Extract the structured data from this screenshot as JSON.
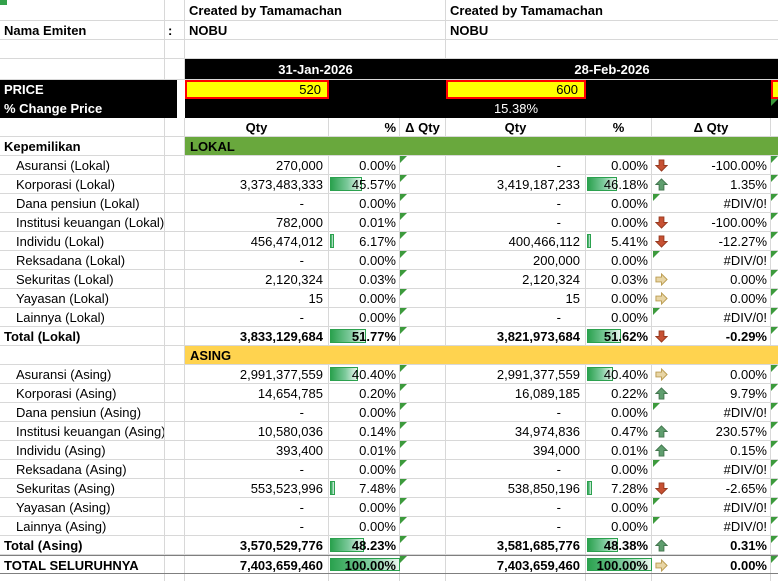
{
  "header": {
    "created_by": "Created by Tamamachan",
    "nama_emiten_label": "Nama Emiten",
    "colon": ":",
    "ticker": "NOBU",
    "price_label": "PRICE",
    "pct_change_label": "% Change Price",
    "kepemilikan_label": "Kepemilikan"
  },
  "periods": [
    {
      "date": "31-Jan-2026",
      "price": "520",
      "pct_change": ""
    },
    {
      "date": "28-Feb-2026",
      "price": "600",
      "pct_change": "15.38%"
    }
  ],
  "column_headers": {
    "qty": "Qty",
    "pct": "%",
    "delta": "Δ Qty"
  },
  "colors": {
    "lokal_band": "#69A83D",
    "asing_band": "#FFD34F",
    "price_fill": "#FFFF00",
    "price_border": "#FF0000",
    "bar_green": "#2BA24F",
    "icon_up_fill": "#5F9E6E",
    "icon_down_fill": "#C75133",
    "icon_right_fill": "#E8D5A5",
    "error_marker": "#3C9A3C"
  },
  "rows": [
    {
      "type": "band",
      "left_label": "Kepemilikan",
      "band_label": "LOKAL",
      "band_color_key": "lokal_band"
    },
    {
      "label": "Asuransi (Lokal)",
      "indent": true,
      "bold": false,
      "p1_qty": "270,000",
      "p1_pct": "0.00%",
      "p1_bar": 0,
      "p2_qty": "-",
      "p2_pct": "0.00%",
      "p2_bar": 0,
      "icon": "down",
      "delta": "-100.00%",
      "error": false
    },
    {
      "label": "Korporasi (Lokal)",
      "indent": true,
      "bold": false,
      "p1_qty": "3,373,483,333",
      "p1_pct": "45.57%",
      "p1_bar": 45.57,
      "p2_qty": "3,419,187,233",
      "p2_pct": "46.18%",
      "p2_bar": 46.18,
      "icon": "up",
      "delta": "1.35%",
      "error": false
    },
    {
      "label": "Dana pensiun (Lokal)",
      "indent": true,
      "bold": false,
      "p1_qty": "-",
      "p1_pct": "0.00%",
      "p1_bar": 0,
      "p2_qty": "-",
      "p2_pct": "0.00%",
      "p2_bar": 0,
      "icon": "",
      "delta": "#DIV/0!",
      "error": true
    },
    {
      "label": "Institusi keuangan (Lokal)",
      "indent": true,
      "bold": false,
      "p1_qty": "782,000",
      "p1_pct": "0.01%",
      "p1_bar": 0,
      "p2_qty": "-",
      "p2_pct": "0.00%",
      "p2_bar": 0,
      "icon": "down",
      "delta": "-100.00%",
      "error": false
    },
    {
      "label": "Individu (Lokal)",
      "indent": true,
      "bold": false,
      "p1_qty": "456,474,012",
      "p1_pct": "6.17%",
      "p1_bar": 6.17,
      "p2_qty": "400,466,112",
      "p2_pct": "5.41%",
      "p2_bar": 5.41,
      "icon": "down",
      "delta": "-12.27%",
      "error": false
    },
    {
      "label": "Reksadana (Lokal)",
      "indent": true,
      "bold": false,
      "p1_qty": "-",
      "p1_pct": "0.00%",
      "p1_bar": 0,
      "p2_qty": "200,000",
      "p2_pct": "0.00%",
      "p2_bar": 0,
      "icon": "",
      "delta": "#DIV/0!",
      "error": true
    },
    {
      "label": "Sekuritas (Lokal)",
      "indent": true,
      "bold": false,
      "p1_qty": "2,120,324",
      "p1_pct": "0.03%",
      "p1_bar": 0,
      "p2_qty": "2,120,324",
      "p2_pct": "0.03%",
      "p2_bar": 0,
      "icon": "right",
      "delta": "0.00%",
      "error": false
    },
    {
      "label": "Yayasan (Lokal)",
      "indent": true,
      "bold": false,
      "p1_qty": "15",
      "p1_pct": "0.00%",
      "p1_bar": 0,
      "p2_qty": "15",
      "p2_pct": "0.00%",
      "p2_bar": 0,
      "icon": "right",
      "delta": "0.00%",
      "error": false
    },
    {
      "label": "Lainnya (Lokal)",
      "indent": true,
      "bold": false,
      "p1_qty": "-",
      "p1_pct": "0.00%",
      "p1_bar": 0,
      "p2_qty": "-",
      "p2_pct": "0.00%",
      "p2_bar": 0,
      "icon": "",
      "delta": "#DIV/0!",
      "error": true
    },
    {
      "label": "Total (Lokal)",
      "indent": false,
      "bold": true,
      "p1_qty": "3,833,129,684",
      "p1_pct": "51.77%",
      "p1_bar": 51.77,
      "p2_qty": "3,821,973,684",
      "p2_pct": "51.62%",
      "p2_bar": 51.62,
      "icon": "down",
      "delta": "-0.29%",
      "error": false
    },
    {
      "type": "band",
      "left_label": "",
      "band_label": "ASING",
      "band_color_key": "asing_band"
    },
    {
      "label": "Asuransi (Asing)",
      "indent": true,
      "bold": false,
      "p1_qty": "2,991,377,559",
      "p1_pct": "40.40%",
      "p1_bar": 40.4,
      "p2_qty": "2,991,377,559",
      "p2_pct": "40.40%",
      "p2_bar": 40.4,
      "icon": "right",
      "delta": "0.00%",
      "error": false
    },
    {
      "label": "Korporasi (Asing)",
      "indent": true,
      "bold": false,
      "p1_qty": "14,654,785",
      "p1_pct": "0.20%",
      "p1_bar": 0.2,
      "p2_qty": "16,089,185",
      "p2_pct": "0.22%",
      "p2_bar": 0.22,
      "icon": "up",
      "delta": "9.79%",
      "error": false
    },
    {
      "label": "Dana pensiun (Asing)",
      "indent": true,
      "bold": false,
      "p1_qty": "-",
      "p1_pct": "0.00%",
      "p1_bar": 0,
      "p2_qty": "-",
      "p2_pct": "0.00%",
      "p2_bar": 0,
      "icon": "",
      "delta": "#DIV/0!",
      "error": true
    },
    {
      "label": "Institusi keuangan (Asing)",
      "indent": true,
      "bold": false,
      "p1_qty": "10,580,036",
      "p1_pct": "0.14%",
      "p1_bar": 0.14,
      "p2_qty": "34,974,836",
      "p2_pct": "0.47%",
      "p2_bar": 0.47,
      "icon": "up",
      "delta": "230.57%",
      "error": false
    },
    {
      "label": "Individu (Asing)",
      "indent": true,
      "bold": false,
      "p1_qty": "393,400",
      "p1_pct": "0.01%",
      "p1_bar": 0,
      "p2_qty": "394,000",
      "p2_pct": "0.01%",
      "p2_bar": 0,
      "icon": "up",
      "delta": "0.15%",
      "error": false
    },
    {
      "label": "Reksadana (Asing)",
      "indent": true,
      "bold": false,
      "p1_qty": "-",
      "p1_pct": "0.00%",
      "p1_bar": 0,
      "p2_qty": "-",
      "p2_pct": "0.00%",
      "p2_bar": 0,
      "icon": "",
      "delta": "#DIV/0!",
      "error": true
    },
    {
      "label": "Sekuritas (Asing)",
      "indent": true,
      "bold": false,
      "p1_qty": "553,523,996",
      "p1_pct": "7.48%",
      "p1_bar": 7.48,
      "p2_qty": "538,850,196",
      "p2_pct": "7.28%",
      "p2_bar": 7.28,
      "icon": "down",
      "delta": "-2.65%",
      "error": false
    },
    {
      "label": "Yayasan (Asing)",
      "indent": true,
      "bold": false,
      "p1_qty": "-",
      "p1_pct": "0.00%",
      "p1_bar": 0,
      "p2_qty": "-",
      "p2_pct": "0.00%",
      "p2_bar": 0,
      "icon": "",
      "delta": "#DIV/0!",
      "error": true
    },
    {
      "label": "Lainnya (Asing)",
      "indent": true,
      "bold": false,
      "p1_qty": "-",
      "p1_pct": "0.00%",
      "p1_bar": 0,
      "p2_qty": "-",
      "p2_pct": "0.00%",
      "p2_bar": 0,
      "icon": "",
      "delta": "#DIV/0!",
      "error": true
    },
    {
      "label": "Total (Asing)",
      "indent": false,
      "bold": true,
      "p1_qty": "3,570,529,776",
      "p1_pct": "48.23%",
      "p1_bar": 48.23,
      "p2_qty": "3,581,685,776",
      "p2_pct": "48.38%",
      "p2_bar": 48.38,
      "icon": "up",
      "delta": "0.31%",
      "error": false
    },
    {
      "label": "TOTAL SELURUHNYA",
      "indent": false,
      "bold": true,
      "heavy": true,
      "p1_qty": "7,403,659,460",
      "p1_pct": "100.00%",
      "p1_bar": 100,
      "p2_qty": "7,403,659,460",
      "p2_pct": "100.00%",
      "p2_bar": 100,
      "icon": "right",
      "delta": "0.00%",
      "error": false
    }
  ]
}
